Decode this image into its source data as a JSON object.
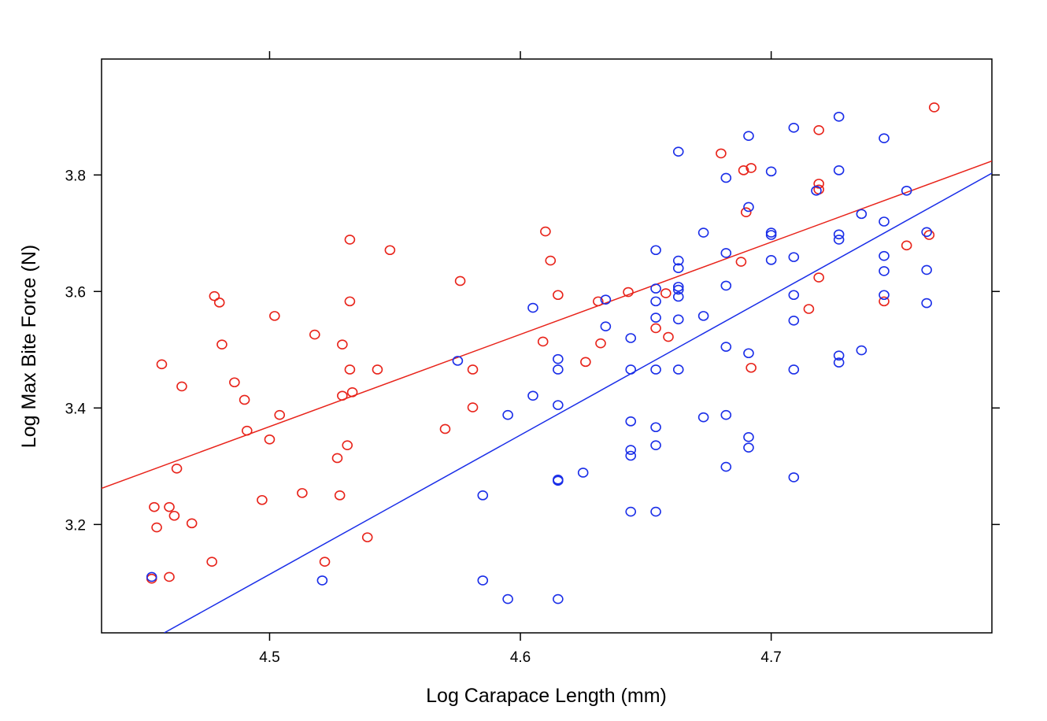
{
  "chart_data": {
    "type": "scatter",
    "title": "",
    "xlabel": "Log Carapace Length (mm)",
    "ylabel": "Log Max Bite Force (N)",
    "xlim": [
      4.433,
      4.788
    ],
    "ylim": [
      3.014,
      3.999
    ],
    "xticks": [
      {
        "value": 4.5,
        "label": "4.5"
      },
      {
        "value": 4.6,
        "label": "4.6"
      },
      {
        "value": 4.7,
        "label": "4.7"
      }
    ],
    "yticks": [
      {
        "value": 3.2,
        "label": "3.2"
      },
      {
        "value": 3.4,
        "label": "3.4"
      },
      {
        "value": 3.6,
        "label": "3.6"
      },
      {
        "value": 3.8,
        "label": "3.8"
      }
    ],
    "grid": false,
    "legend": "none",
    "series": [
      {
        "color": "#e8231a",
        "marker": "open-circle",
        "fit_line": {
          "x": [
            4.433,
            4.788
          ],
          "y": [
            3.262,
            3.824
          ]
        },
        "points": [
          [
            4.454,
            3.23
          ],
          [
            4.455,
            3.195
          ],
          [
            4.453,
            3.107
          ],
          [
            4.457,
            3.475
          ],
          [
            4.46,
            3.23
          ],
          [
            4.46,
            3.11
          ],
          [
            4.462,
            3.215
          ],
          [
            4.463,
            3.296
          ],
          [
            4.465,
            3.437
          ],
          [
            4.469,
            3.202
          ],
          [
            4.477,
            3.136
          ],
          [
            4.478,
            3.592
          ],
          [
            4.48,
            3.581
          ],
          [
            4.481,
            3.509
          ],
          [
            4.486,
            3.444
          ],
          [
            4.49,
            3.414
          ],
          [
            4.491,
            3.361
          ],
          [
            4.497,
            3.242
          ],
          [
            4.5,
            3.346
          ],
          [
            4.502,
            3.558
          ],
          [
            4.504,
            3.388
          ],
          [
            4.513,
            3.254
          ],
          [
            4.518,
            3.526
          ],
          [
            4.522,
            3.136
          ],
          [
            4.527,
            3.314
          ],
          [
            4.528,
            3.25
          ],
          [
            4.529,
            3.509
          ],
          [
            4.529,
            3.421
          ],
          [
            4.531,
            3.336
          ],
          [
            4.532,
            3.689
          ],
          [
            4.532,
            3.583
          ],
          [
            4.532,
            3.466
          ],
          [
            4.533,
            3.427
          ],
          [
            4.539,
            3.178
          ],
          [
            4.543,
            3.466
          ],
          [
            4.548,
            3.671
          ],
          [
            4.57,
            3.364
          ],
          [
            4.576,
            3.618
          ],
          [
            4.581,
            3.466
          ],
          [
            4.581,
            3.401
          ],
          [
            4.609,
            3.514
          ],
          [
            4.61,
            3.703
          ],
          [
            4.612,
            3.653
          ],
          [
            4.615,
            3.594
          ],
          [
            4.626,
            3.479
          ],
          [
            4.631,
            3.583
          ],
          [
            4.632,
            3.511
          ],
          [
            4.643,
            3.599
          ],
          [
            4.654,
            3.537
          ],
          [
            4.658,
            3.597
          ],
          [
            4.659,
            3.522
          ],
          [
            4.68,
            3.837
          ],
          [
            4.688,
            3.651
          ],
          [
            4.689,
            3.808
          ],
          [
            4.69,
            3.736
          ],
          [
            4.692,
            3.812
          ],
          [
            4.692,
            3.469
          ],
          [
            4.715,
            3.57
          ],
          [
            4.719,
            3.877
          ],
          [
            4.719,
            3.785
          ],
          [
            4.719,
            3.775
          ],
          [
            4.719,
            3.624
          ],
          [
            4.745,
            3.583
          ],
          [
            4.754,
            3.679
          ],
          [
            4.763,
            3.697
          ],
          [
            4.765,
            3.916
          ]
        ]
      },
      {
        "color": "#1a2ee8",
        "marker": "open-circle",
        "fit_line": {
          "x": [
            4.458,
            4.788
          ],
          "y": [
            3.014,
            3.803
          ]
        },
        "points": [
          [
            4.453,
            3.11
          ],
          [
            4.521,
            3.104
          ],
          [
            4.575,
            3.481
          ],
          [
            4.585,
            3.25
          ],
          [
            4.585,
            3.104
          ],
          [
            4.595,
            3.388
          ],
          [
            4.595,
            3.072
          ],
          [
            4.605,
            3.572
          ],
          [
            4.605,
            3.421
          ],
          [
            4.615,
            3.484
          ],
          [
            4.615,
            3.466
          ],
          [
            4.615,
            3.405
          ],
          [
            4.615,
            3.277
          ],
          [
            4.615,
            3.275
          ],
          [
            4.615,
            3.072
          ],
          [
            4.625,
            3.289
          ],
          [
            4.634,
            3.586
          ],
          [
            4.634,
            3.54
          ],
          [
            4.644,
            3.52
          ],
          [
            4.644,
            3.466
          ],
          [
            4.644,
            3.377
          ],
          [
            4.644,
            3.328
          ],
          [
            4.644,
            3.318
          ],
          [
            4.644,
            3.222
          ],
          [
            4.654,
            3.671
          ],
          [
            4.654,
            3.605
          ],
          [
            4.654,
            3.583
          ],
          [
            4.654,
            3.555
          ],
          [
            4.654,
            3.466
          ],
          [
            4.654,
            3.367
          ],
          [
            4.654,
            3.336
          ],
          [
            4.654,
            3.222
          ],
          [
            4.663,
            3.84
          ],
          [
            4.663,
            3.653
          ],
          [
            4.663,
            3.64
          ],
          [
            4.663,
            3.608
          ],
          [
            4.663,
            3.603
          ],
          [
            4.663,
            3.591
          ],
          [
            4.663,
            3.552
          ],
          [
            4.663,
            3.466
          ],
          [
            4.673,
            3.701
          ],
          [
            4.673,
            3.558
          ],
          [
            4.673,
            3.384
          ],
          [
            4.682,
            3.795
          ],
          [
            4.682,
            3.666
          ],
          [
            4.682,
            3.61
          ],
          [
            4.682,
            3.505
          ],
          [
            4.682,
            3.388
          ],
          [
            4.682,
            3.299
          ],
          [
            4.691,
            3.867
          ],
          [
            4.691,
            3.745
          ],
          [
            4.691,
            3.494
          ],
          [
            4.691,
            3.35
          ],
          [
            4.691,
            3.332
          ],
          [
            4.7,
            3.806
          ],
          [
            4.7,
            3.701
          ],
          [
            4.7,
            3.697
          ],
          [
            4.7,
            3.654
          ],
          [
            4.709,
            3.881
          ],
          [
            4.709,
            3.659
          ],
          [
            4.709,
            3.594
          ],
          [
            4.709,
            3.55
          ],
          [
            4.709,
            3.466
          ],
          [
            4.709,
            3.281
          ],
          [
            4.718,
            3.773
          ],
          [
            4.727,
            3.9
          ],
          [
            4.727,
            3.808
          ],
          [
            4.727,
            3.698
          ],
          [
            4.727,
            3.689
          ],
          [
            4.727,
            3.49
          ],
          [
            4.727,
            3.478
          ],
          [
            4.736,
            3.733
          ],
          [
            4.736,
            3.499
          ],
          [
            4.745,
            3.863
          ],
          [
            4.745,
            3.72
          ],
          [
            4.745,
            3.661
          ],
          [
            4.745,
            3.635
          ],
          [
            4.745,
            3.594
          ],
          [
            4.754,
            3.773
          ],
          [
            4.762,
            3.702
          ],
          [
            4.762,
            3.637
          ],
          [
            4.762,
            3.58
          ]
        ]
      }
    ]
  }
}
